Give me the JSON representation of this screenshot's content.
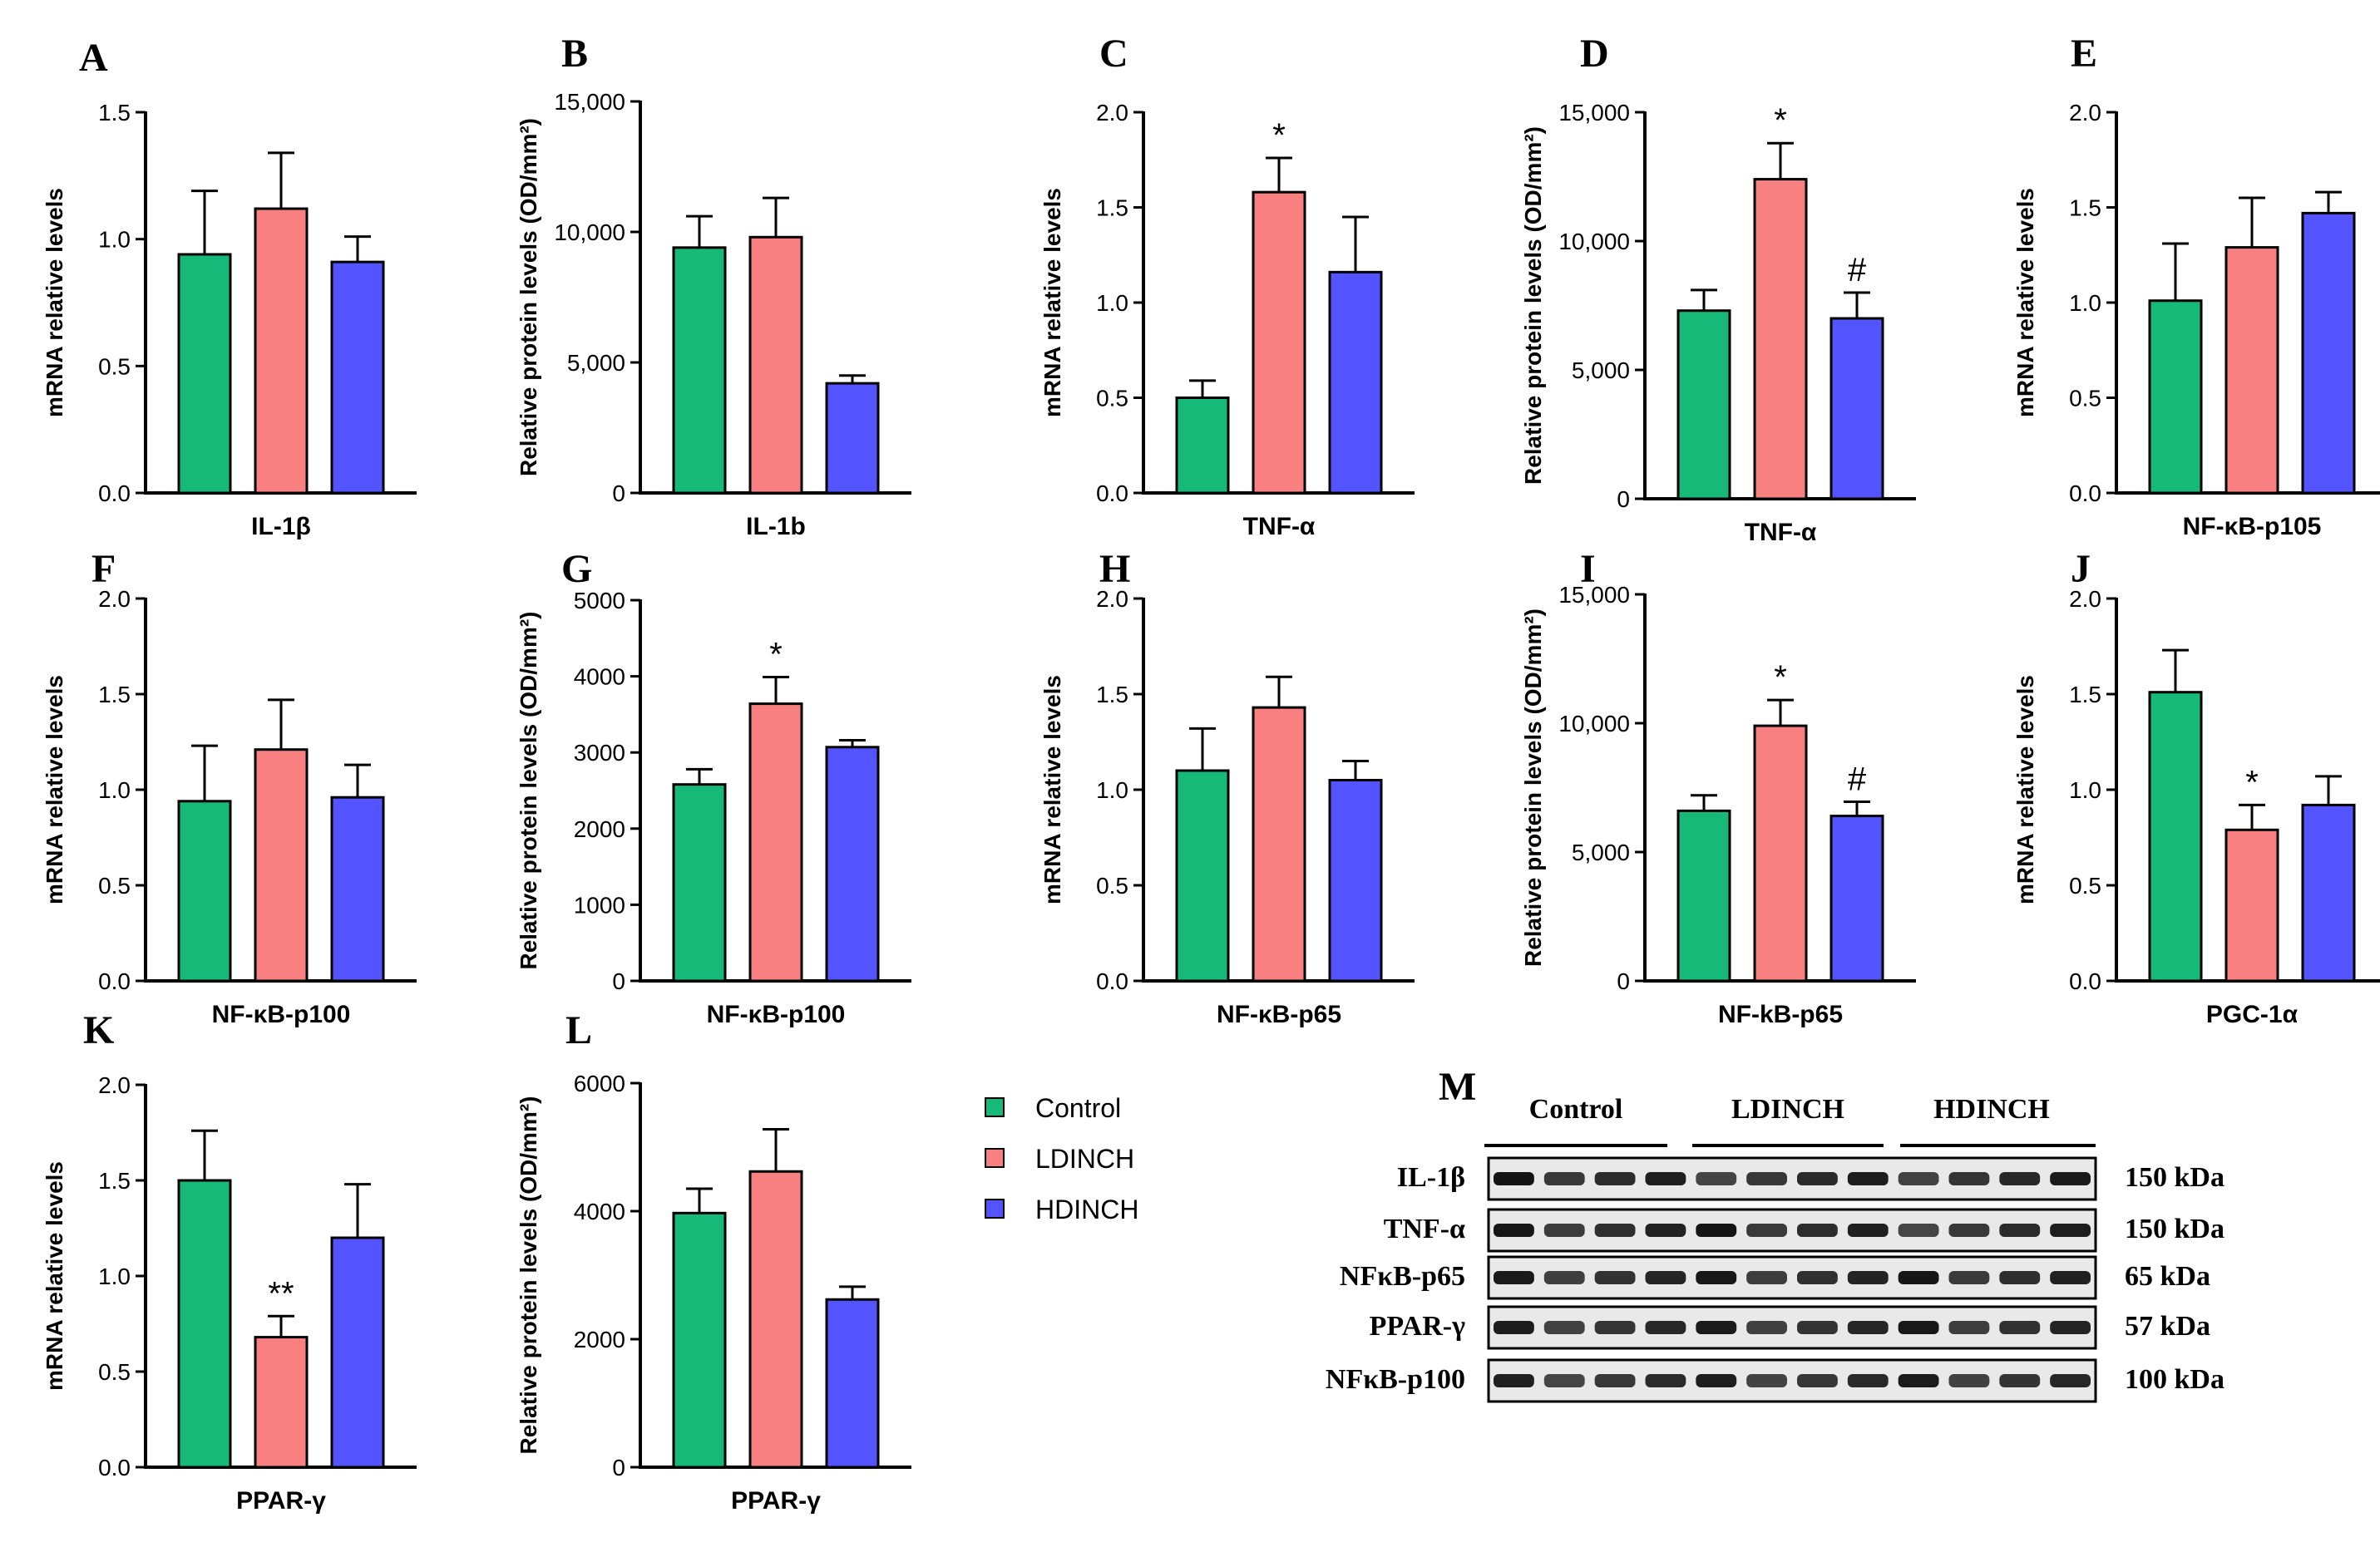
{
  "colors": {
    "control": "#16b978",
    "ldinch": "#f98080",
    "hdinch": "#5454fe",
    "axis": "#000000"
  },
  "legend": [
    {
      "name": "Control",
      "color": "#16b978"
    },
    {
      "name": "LDINCH",
      "color": "#f98080"
    },
    {
      "name": "HDINCH",
      "color": "#5454fe"
    }
  ],
  "chart_data": [
    {
      "panel": "A",
      "type": "bar",
      "title": "",
      "xlabel": "IL-1β",
      "ylabel": "mRNA relative levels",
      "ylim": [
        0,
        1.5
      ],
      "ticks": [
        "0.0",
        "0.5",
        "1.0",
        "1.5"
      ],
      "categories": [
        "Control",
        "LDINCH",
        "HDINCH"
      ],
      "values": [
        0.94,
        1.12,
        0.91
      ],
      "errors": [
        0.25,
        0.22,
        0.1
      ],
      "annotations": [
        "",
        "",
        ""
      ]
    },
    {
      "panel": "B",
      "type": "bar",
      "title": "",
      "xlabel": "IL-1b",
      "ylabel": "Relative protein levels (OD/mm²)",
      "ylim": [
        0,
        15000
      ],
      "ticks": [
        "0",
        "5,000",
        "10,000",
        "15,000"
      ],
      "categories": [
        "Control",
        "LDINCH",
        "HDINCH"
      ],
      "values": [
        9400,
        9800,
        4200
      ],
      "errors": [
        1200,
        1500,
        300
      ],
      "annotations": [
        "",
        "",
        ""
      ]
    },
    {
      "panel": "C",
      "type": "bar",
      "title": "",
      "xlabel": "TNF-α",
      "ylabel": "mRNA relative levels",
      "ylim": [
        0,
        2.0
      ],
      "ticks": [
        "0.0",
        "0.5",
        "1.0",
        "1.5",
        "2.0"
      ],
      "categories": [
        "Control",
        "LDINCH",
        "HDINCH"
      ],
      "values": [
        0.5,
        1.58,
        1.16
      ],
      "errors": [
        0.09,
        0.18,
        0.29
      ],
      "annotations": [
        "",
        "*",
        ""
      ]
    },
    {
      "panel": "D",
      "type": "bar",
      "title": "",
      "xlabel": "TNF-α",
      "ylabel": "Relative protein levels (OD/mm²)",
      "ylim": [
        0,
        15000
      ],
      "ticks": [
        "0",
        "5,000",
        "10,000",
        "15,000"
      ],
      "categories": [
        "Control",
        "LDINCH",
        "HDINCH"
      ],
      "values": [
        7300,
        12400,
        7000
      ],
      "errors": [
        800,
        1400,
        1000
      ],
      "annotations": [
        "",
        "*",
        "#"
      ]
    },
    {
      "panel": "E",
      "type": "bar",
      "title": "",
      "xlabel": "NF-κB-p105",
      "ylabel": "mRNA relative levels",
      "ylim": [
        0,
        2.0
      ],
      "ticks": [
        "0.0",
        "0.5",
        "1.0",
        "1.5",
        "2.0"
      ],
      "categories": [
        "Control",
        "LDINCH",
        "HDINCH"
      ],
      "values": [
        1.01,
        1.29,
        1.47
      ],
      "errors": [
        0.3,
        0.26,
        0.11
      ],
      "annotations": [
        "",
        "",
        ""
      ]
    },
    {
      "panel": "F",
      "type": "bar",
      "title": "",
      "xlabel": "NF-κB-p100",
      "ylabel": "mRNA relative levels",
      "ylim": [
        0,
        2.0
      ],
      "ticks": [
        "0.0",
        "0.5",
        "1.0",
        "1.5",
        "2.0"
      ],
      "categories": [
        "Control",
        "LDINCH",
        "HDINCH"
      ],
      "values": [
        0.94,
        1.21,
        0.96
      ],
      "errors": [
        0.29,
        0.26,
        0.17
      ],
      "annotations": [
        "",
        "",
        ""
      ]
    },
    {
      "panel": "G",
      "type": "bar",
      "title": "",
      "xlabel": "NF-κB-p100",
      "ylabel": "Relative protein levels (OD/mm²)",
      "ylim": [
        0,
        5000
      ],
      "ticks": [
        "0",
        "1000",
        "2000",
        "3000",
        "4000",
        "5000"
      ],
      "categories": [
        "Control",
        "LDINCH",
        "HDINCH"
      ],
      "values": [
        2580,
        3640,
        3070
      ],
      "errors": [
        200,
        350,
        90
      ],
      "annotations": [
        "",
        "*",
        ""
      ]
    },
    {
      "panel": "H",
      "type": "bar",
      "title": "",
      "xlabel": "NF-κB-p65",
      "ylabel": "mRNA relative levels",
      "ylim": [
        0,
        2.0
      ],
      "ticks": [
        "0.0",
        "0.5",
        "1.0",
        "1.5",
        "2.0"
      ],
      "categories": [
        "Control",
        "LDINCH",
        "HDINCH"
      ],
      "values": [
        1.1,
        1.43,
        1.05
      ],
      "errors": [
        0.22,
        0.16,
        0.1
      ],
      "annotations": [
        "",
        "",
        ""
      ]
    },
    {
      "panel": "I",
      "type": "bar",
      "title": "",
      "xlabel": "NF-kB-p65",
      "ylabel": "Relative protein levels (OD/mm²)",
      "ylim": [
        0,
        15000
      ],
      "ticks": [
        "0",
        "5,000",
        "10,000",
        "15,000"
      ],
      "categories": [
        "Control",
        "LDINCH",
        "HDINCH"
      ],
      "values": [
        6600,
        9900,
        6400
      ],
      "errors": [
        600,
        1000,
        550
      ],
      "annotations": [
        "",
        "*",
        "#"
      ]
    },
    {
      "panel": "J",
      "type": "bar",
      "title": "",
      "xlabel": "PGC-1α",
      "ylabel": "mRNA relative levels",
      "ylim": [
        0,
        2.0
      ],
      "ticks": [
        "0.0",
        "0.5",
        "1.0",
        "1.5",
        "2.0"
      ],
      "categories": [
        "Control",
        "LDINCH",
        "HDINCH"
      ],
      "values": [
        1.51,
        0.79,
        0.92
      ],
      "errors": [
        0.22,
        0.13,
        0.15
      ],
      "annotations": [
        "",
        "*",
        ""
      ]
    },
    {
      "panel": "K",
      "type": "bar",
      "title": "",
      "xlabel": "PPAR-γ",
      "ylabel": "mRNA relative levels",
      "ylim": [
        0,
        2.0
      ],
      "ticks": [
        "0.0",
        "0.5",
        "1.0",
        "1.5",
        "2.0"
      ],
      "categories": [
        "Control",
        "LDINCH",
        "HDINCH"
      ],
      "values": [
        1.5,
        0.68,
        1.2
      ],
      "errors": [
        0.26,
        0.11,
        0.28
      ],
      "annotations": [
        "",
        "**",
        ""
      ]
    },
    {
      "panel": "L",
      "type": "bar",
      "title": "",
      "xlabel": "PPAR-γ",
      "ylabel": "Relative protein levels (OD/mm²)",
      "ylim": [
        0,
        6000
      ],
      "ticks": [
        "0",
        "2000",
        "4000",
        "6000"
      ],
      "categories": [
        "Control",
        "LDINCH",
        "HDINCH"
      ],
      "values": [
        3970,
        4620,
        2620
      ],
      "errors": [
        380,
        660,
        200
      ],
      "annotations": [
        "",
        "",
        ""
      ]
    }
  ],
  "western_blot": {
    "panel": "M",
    "groups": [
      "Control",
      "LDINCH",
      "HDINCH"
    ],
    "lanes_per_group": 4,
    "rows": [
      {
        "label": "IL-1β",
        "kda": "150 kDa"
      },
      {
        "label": "TNF-α",
        "kda": "150 kDa"
      },
      {
        "label": "NFκB-p65",
        "kda": "65 kDa"
      },
      {
        "label": "PPAR-γ",
        "kda": "57 kDa"
      },
      {
        "label": "NFκB-p100",
        "kda": "100 kDa"
      }
    ]
  }
}
